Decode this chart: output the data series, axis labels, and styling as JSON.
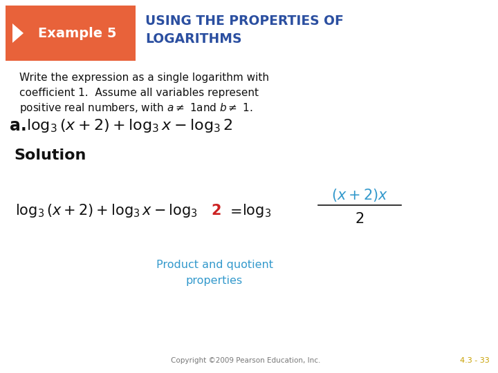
{
  "bg_color": "#ffffff",
  "header_box_color": "#e8623a",
  "header_box_text": "Example 5",
  "header_box_text_color": "#ffffff",
  "header_title_text1": "USING THE PROPERTIES OF",
  "header_title_text2": "LOGARITHMS",
  "header_title_color": "#2b4fa0",
  "body_text_color": "#111111",
  "annotation_color": "#3399cc",
  "copyright_text": "Copyright ©2009 Pearson Education, Inc.",
  "copyright_color": "#777777",
  "page_ref": "4.3 - 33",
  "page_ref_color": "#c8a000",
  "red_color": "#cc2222",
  "blue_color": "#3399cc"
}
